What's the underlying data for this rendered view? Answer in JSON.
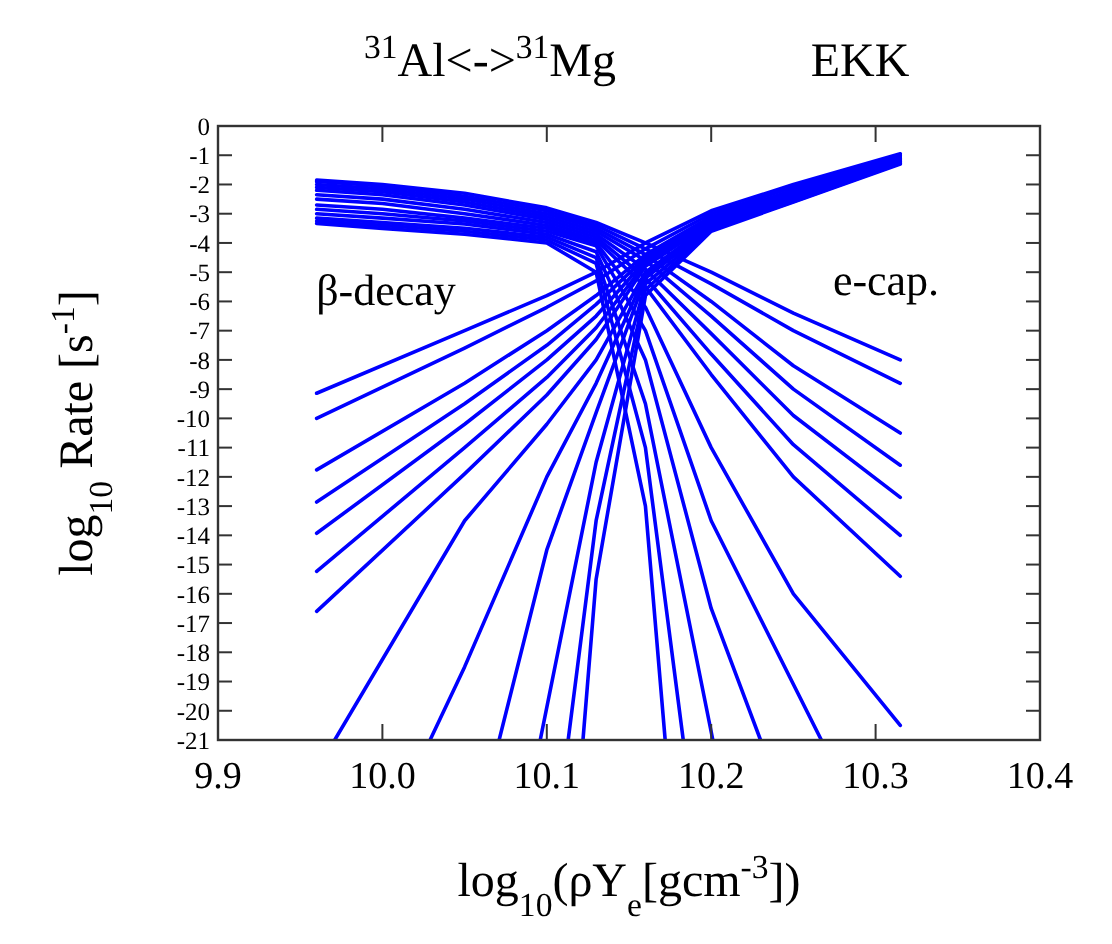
{
  "chart_data": {
    "type": "line",
    "title": "$^{31}$Al<->$^{31}$Mg",
    "subtitle": "EKK",
    "xlabel": "log$_{10}$(ρY$_{e}$[gcm$^{-3}$])",
    "ylabel": "log$_{10}$ Rate [s$^{-1}$]",
    "xlim": [
      9.9,
      10.4
    ],
    "ylim": [
      -21,
      0
    ],
    "xticks": [
      9.9,
      {
        "value": 10,
        "label": "10.0"
      },
      10.1,
      10.2,
      10.3,
      10.4
    ],
    "yticks": [
      0,
      -1,
      -2,
      -3,
      -4,
      -5,
      -6,
      -7,
      -8,
      -9,
      -10,
      -11,
      -12,
      -13,
      -14,
      -15,
      -16,
      -17,
      -18,
      -19,
      -20,
      -21
    ],
    "grid": false,
    "marker": "none",
    "line_style": "solid",
    "annotations": [
      "β-decay",
      "e-cap."
    ],
    "series": [
      {
        "color": "#0000ff",
        "x": [
          9.96,
          10.0,
          10.05,
          10.1,
          10.13,
          10.16,
          10.2,
          10.25,
          10.315
        ],
        "values": [
          -1.85,
          -2.0,
          -2.3,
          -2.8,
          -3.3,
          -4.0,
          -5.0,
          -6.4,
          -8.0
        ]
      },
      {
        "color": "#0000ff",
        "x": [
          9.96,
          10.0,
          10.05,
          10.1,
          10.13,
          10.16,
          10.2,
          10.25,
          10.315
        ],
        "values": [
          -1.9,
          -2.05,
          -2.4,
          -2.9,
          -3.4,
          -4.2,
          -5.4,
          -7.0,
          -8.8
        ]
      },
      {
        "color": "#0000ff",
        "x": [
          9.96,
          10.0,
          10.05,
          10.1,
          10.13,
          10.16,
          10.2,
          10.25,
          10.315
        ],
        "values": [
          -2.0,
          -2.15,
          -2.5,
          -3.0,
          -3.5,
          -4.4,
          -6.0,
          -8.2,
          -10.5
        ]
      },
      {
        "color": "#0000ff",
        "x": [
          9.96,
          10.0,
          10.05,
          10.1,
          10.13,
          10.16,
          10.2,
          10.25,
          10.315
        ],
        "values": [
          -2.1,
          -2.25,
          -2.6,
          -3.1,
          -3.6,
          -4.6,
          -6.5,
          -9.0,
          -11.6
        ]
      },
      {
        "color": "#0000ff",
        "x": [
          9.96,
          10.0,
          10.05,
          10.1,
          10.13,
          10.16,
          10.2,
          10.25,
          10.315
        ],
        "values": [
          -2.2,
          -2.35,
          -2.7,
          -3.2,
          -3.7,
          -4.9,
          -7.1,
          -9.9,
          -12.7
        ]
      },
      {
        "color": "#0000ff",
        "x": [
          9.96,
          10.0,
          10.05,
          10.1,
          10.13,
          10.16,
          10.2,
          10.25,
          10.315
        ],
        "values": [
          -2.35,
          -2.5,
          -2.85,
          -3.3,
          -3.8,
          -5.2,
          -7.8,
          -10.9,
          -14.0
        ]
      },
      {
        "color": "#0000ff",
        "x": [
          9.96,
          10.0,
          10.05,
          10.1,
          10.13,
          10.16,
          10.2,
          10.25,
          10.315
        ],
        "values": [
          -2.5,
          -2.65,
          -3.0,
          -3.4,
          -3.9,
          -5.5,
          -8.5,
          -12.0,
          -15.4
        ]
      },
      {
        "color": "#0000ff",
        "x": [
          9.96,
          10.0,
          10.05,
          10.1,
          10.13,
          10.16,
          10.2,
          10.25,
          10.315
        ],
        "values": [
          -2.7,
          -2.85,
          -3.15,
          -3.5,
          -4.0,
          -6.2,
          -11.0,
          -16.0,
          -20.5
        ]
      },
      {
        "color": "#0000ff",
        "x": [
          9.96,
          10.0,
          10.05,
          10.1,
          10.13,
          10.16,
          10.2,
          10.267
        ],
        "values": [
          -2.85,
          -3.0,
          -3.25,
          -3.6,
          -4.1,
          -7.0,
          -13.5,
          -21
        ]
      },
      {
        "color": "#0000ff",
        "x": [
          9.96,
          10.0,
          10.05,
          10.1,
          10.13,
          10.16,
          10.2,
          10.23
        ],
        "values": [
          -3.0,
          -3.15,
          -3.35,
          -3.7,
          -4.3,
          -8.0,
          -16.5,
          -21
        ]
      },
      {
        "color": "#0000ff",
        "x": [
          9.96,
          10.0,
          10.05,
          10.1,
          10.13,
          10.16,
          10.201
        ],
        "values": [
          -3.15,
          -3.3,
          -3.5,
          -3.8,
          -4.5,
          -9.5,
          -21
        ]
      },
      {
        "color": "#0000ff",
        "x": [
          9.96,
          10.0,
          10.05,
          10.1,
          10.13,
          10.16,
          10.183
        ],
        "values": [
          -3.25,
          -3.4,
          -3.6,
          -3.9,
          -4.7,
          -11.0,
          -21
        ]
      },
      {
        "color": "#0000ff",
        "x": [
          9.96,
          10.0,
          10.05,
          10.1,
          10.13,
          10.16,
          10.172
        ],
        "values": [
          -3.33,
          -3.5,
          -3.7,
          -4.0,
          -5.0,
          -13.0,
          -21
        ]
      },
      {
        "color": "#0000ff",
        "x": [
          9.96,
          10.05,
          10.1,
          10.13,
          10.16,
          10.2,
          10.25,
          10.315
        ],
        "values": [
          -9.14,
          -7.0,
          -5.8,
          -5.0,
          -4.0,
          -2.9,
          -2.0,
          -0.95
        ]
      },
      {
        "color": "#0000ff",
        "x": [
          9.96,
          10.05,
          10.1,
          10.13,
          10.16,
          10.2,
          10.25,
          10.315
        ],
        "values": [
          -10.0,
          -7.6,
          -6.2,
          -5.3,
          -4.2,
          -3.0,
          -2.1,
          -1.0
        ]
      },
      {
        "color": "#0000ff",
        "x": [
          9.96,
          10.05,
          10.1,
          10.13,
          10.16,
          10.2,
          10.25,
          10.315
        ],
        "values": [
          -11.76,
          -8.8,
          -7.0,
          -5.8,
          -4.4,
          -3.1,
          -2.2,
          -1.05
        ]
      },
      {
        "color": "#0000ff",
        "x": [
          9.96,
          10.05,
          10.1,
          10.13,
          10.16,
          10.2,
          10.25,
          10.315
        ],
        "values": [
          -12.86,
          -9.5,
          -7.5,
          -6.1,
          -4.5,
          -3.15,
          -2.25,
          -1.1
        ]
      },
      {
        "color": "#0000ff",
        "x": [
          9.96,
          10.05,
          10.1,
          10.13,
          10.16,
          10.2,
          10.25,
          10.315
        ],
        "values": [
          -13.93,
          -10.2,
          -8.0,
          -6.5,
          -4.6,
          -3.2,
          -2.3,
          -1.12
        ]
      },
      {
        "color": "#0000ff",
        "x": [
          9.96,
          10.05,
          10.1,
          10.13,
          10.16,
          10.2,
          10.25,
          10.315
        ],
        "values": [
          -15.23,
          -11.0,
          -8.6,
          -6.9,
          -4.7,
          -3.25,
          -2.35,
          -1.15
        ]
      },
      {
        "color": "#0000ff",
        "x": [
          9.96,
          10.05,
          10.1,
          10.13,
          10.16,
          10.2,
          10.25,
          10.315
        ],
        "values": [
          -16.6,
          -11.9,
          -9.2,
          -7.3,
          -4.8,
          -3.3,
          -2.4,
          -1.18
        ]
      },
      {
        "color": "#0000ff",
        "x": [
          9.971,
          10.05,
          10.1,
          10.13,
          10.16,
          10.2,
          10.25,
          10.315
        ],
        "values": [
          -21,
          -13.5,
          -10.2,
          -8.0,
          -5.0,
          -3.35,
          -2.45,
          -1.2
        ]
      },
      {
        "color": "#0000ff",
        "x": [
          10.029,
          10.05,
          10.1,
          10.13,
          10.16,
          10.2,
          10.25,
          10.315
        ],
        "values": [
          -21,
          -18.5,
          -12.0,
          -8.8,
          -5.1,
          -3.4,
          -2.5,
          -1.22
        ]
      },
      {
        "color": "#0000ff",
        "x": [
          10.071,
          10.1,
          10.13,
          10.16,
          10.2,
          10.25,
          10.315
        ],
        "values": [
          -21,
          -14.5,
          -9.8,
          -5.2,
          -3.45,
          -2.52,
          -1.25
        ]
      },
      {
        "color": "#0000ff",
        "x": [
          10.096,
          10.13,
          10.16,
          10.2,
          10.25,
          10.315
        ],
        "values": [
          -21,
          -11.5,
          -5.4,
          -3.5,
          -2.55,
          -1.27
        ]
      },
      {
        "color": "#0000ff",
        "x": [
          10.113,
          10.13,
          10.16,
          10.2,
          10.25,
          10.315
        ],
        "values": [
          -21,
          -13.5,
          -5.6,
          -3.55,
          -2.58,
          -1.28
        ]
      },
      {
        "color": "#0000ff",
        "x": [
          10.122,
          10.13,
          10.16,
          10.2,
          10.25,
          10.315
        ],
        "values": [
          -21,
          -15.5,
          -5.8,
          -3.6,
          -2.6,
          -1.3
        ]
      }
    ]
  }
}
